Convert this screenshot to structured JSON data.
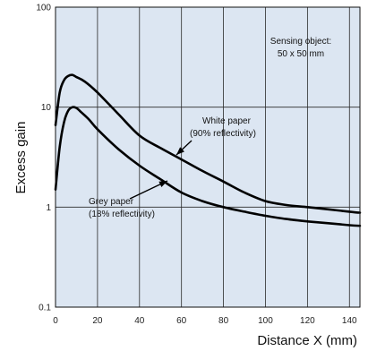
{
  "chart_data": {
    "type": "line",
    "xlabel": "Distance X (mm)",
    "ylabel": "Excess gain",
    "xlim": [
      0,
      145
    ],
    "ylim": [
      0.1,
      100
    ],
    "yscale": "log",
    "grid": true,
    "x_ticks": [
      "0",
      "20",
      "40",
      "60",
      "80",
      "100",
      "120",
      "140"
    ],
    "y_ticks": [
      "0.1",
      "1",
      "10",
      "100"
    ],
    "note_lines": [
      "Sensing object:",
      "50 x 50 mm"
    ],
    "series": [
      {
        "name_lines": [
          "White paper",
          "(90% reflectivity)"
        ],
        "x": [
          0,
          2,
          4,
          6,
          8,
          10,
          14,
          20,
          30,
          40,
          50,
          60,
          70,
          80,
          90,
          100,
          110,
          120,
          130,
          140,
          145
        ],
        "y": [
          6.6,
          14,
          18.5,
          20.5,
          21,
          20,
          18,
          14,
          8.5,
          5.2,
          3.9,
          3.0,
          2.3,
          1.8,
          1.4,
          1.15,
          1.05,
          1.0,
          0.95,
          0.9,
          0.88
        ]
      },
      {
        "name_lines": [
          "Grey paper",
          "(18% reflectivity)"
        ],
        "x": [
          0,
          2,
          4,
          6,
          8,
          10,
          12,
          16,
          20,
          30,
          40,
          50,
          60,
          70,
          80,
          90,
          100,
          110,
          120,
          130,
          140,
          145
        ],
        "y": [
          1.5,
          4,
          7,
          9.2,
          10,
          9.8,
          9,
          7.5,
          6,
          3.8,
          2.6,
          1.9,
          1.4,
          1.15,
          1.0,
          0.9,
          0.82,
          0.76,
          0.72,
          0.69,
          0.66,
          0.65
        ]
      }
    ]
  }
}
